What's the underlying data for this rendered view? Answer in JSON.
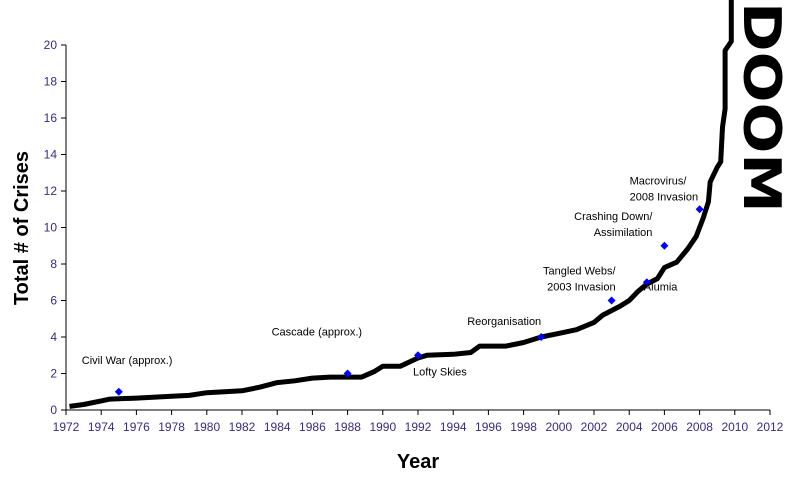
{
  "chart_data": {
    "type": "line",
    "title": "",
    "xlabel": "Year",
    "ylabel": "Total # of Crises",
    "xlim": [
      1972,
      2012
    ],
    "ylim": [
      0,
      20
    ],
    "xticks": [
      "1972",
      "1974",
      "1976",
      "1978",
      "1980",
      "1982",
      "1984",
      "1986",
      "1988",
      "1990",
      "1992",
      "1994",
      "1996",
      "1998",
      "2000",
      "2002",
      "2004",
      "2006",
      "2008",
      "2010",
      "2012"
    ],
    "yticks": [
      "0",
      "2",
      "4",
      "6",
      "8",
      "10",
      "12",
      "14",
      "16",
      "18",
      "20"
    ],
    "grid": false,
    "series": [
      {
        "name": "trend",
        "style": "thick black line",
        "x": [
          1972.2,
          1973,
          1974,
          1974.5,
          1976,
          1978,
          1979,
          1980,
          1981,
          1982,
          1983,
          1984,
          1985,
          1986,
          1987,
          1988.8,
          1989.5,
          1990,
          1991,
          1992,
          1992.5,
          1994,
          1995,
          1995.5,
          1997,
          1998,
          1999,
          2000,
          2001,
          2002,
          2002.5,
          2003.5,
          2004,
          2004.5,
          2005,
          2005.6,
          2006,
          2006.7,
          2007.3,
          2007.8,
          2008.2,
          2008.5,
          2008.6,
          2009,
          2009.2,
          2009.3,
          2009.45,
          2009.45,
          2009.8,
          2009.8
        ],
        "y": [
          0.2,
          0.3,
          0.5,
          0.6,
          0.65,
          0.75,
          0.8,
          0.95,
          1.0,
          1.05,
          1.25,
          1.5,
          1.6,
          1.75,
          1.8,
          1.8,
          2.1,
          2.4,
          2.4,
          2.85,
          3.0,
          3.05,
          3.15,
          3.5,
          3.5,
          3.7,
          4.0,
          4.2,
          4.4,
          4.8,
          5.2,
          5.7,
          6.0,
          6.5,
          6.9,
          7.2,
          7.8,
          8.1,
          8.8,
          9.5,
          10.5,
          11.4,
          12.5,
          13.3,
          13.6,
          15.5,
          16.5,
          19.7,
          20.2,
          23
        ]
      },
      {
        "name": "crises",
        "style": "blue diamond markers",
        "points": [
          {
            "x": 1975,
            "y": 1,
            "label": [
              "Civil War (approx.)"
            ]
          },
          {
            "x": 1988,
            "y": 2,
            "label": [
              "Cascade (approx.)"
            ]
          },
          {
            "x": 1992,
            "y": 3,
            "label": [
              "Lofty Skies"
            ]
          },
          {
            "x": 1999,
            "y": 4,
            "label": [
              "Reorganisation"
            ]
          },
          {
            "x": 2003,
            "y": 6,
            "label": [
              "Tangled Webs/",
              "2003 Invasion"
            ]
          },
          {
            "x": 2005,
            "y": 7,
            "label": [
              "Alumia"
            ]
          },
          {
            "x": 2006,
            "y": 9,
            "label": [
              "Crashing Down/",
              "Assimilation"
            ]
          },
          {
            "x": 2008,
            "y": 11,
            "label": [
              "Macrovirus/",
              "2008 Invasion"
            ]
          }
        ]
      }
    ],
    "annotations": [
      "DOOM"
    ],
    "colors": {
      "line": "#000000",
      "marker": "#0000ff",
      "ticks": "#3a2a80"
    }
  }
}
